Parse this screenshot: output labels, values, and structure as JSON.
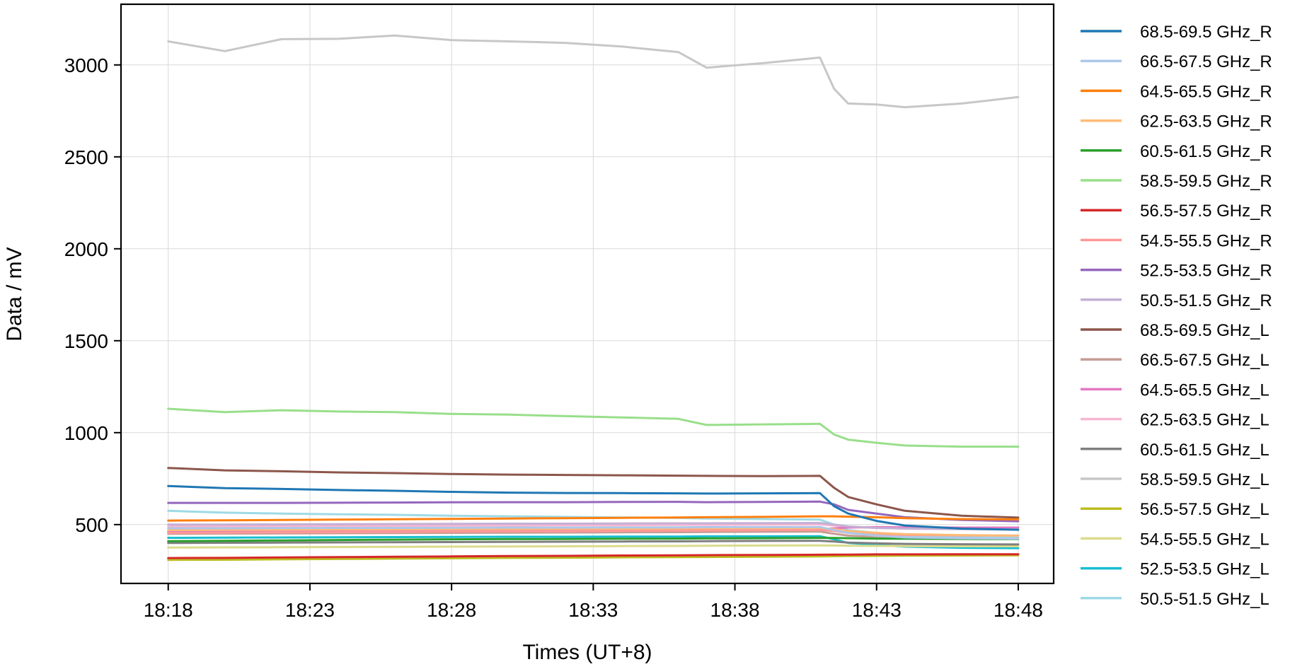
{
  "chart_data": {
    "type": "line",
    "title": "",
    "xlabel": "Times (UT+8)",
    "ylabel": "Data / mV",
    "x_ticks": [
      "18:18",
      "18:23",
      "18:28",
      "18:33",
      "18:38",
      "18:43",
      "18:48"
    ],
    "x_tick_values": [
      "18:18",
      "18:23",
      "18:28",
      "18:33",
      "18:38",
      "18:43",
      "18:48"
    ],
    "y_ticks": [
      500,
      1000,
      1500,
      2000,
      2500,
      3000
    ],
    "ylim": [
      180,
      3330
    ],
    "xlim": [
      "18:16:20",
      "18:49:15"
    ],
    "grid": true,
    "legend_position": "outside-right",
    "x": [
      "18:18",
      "18:20",
      "18:22",
      "18:24",
      "18:26",
      "18:28",
      "18:30",
      "18:32",
      "18:34",
      "18:36",
      "18:37",
      "18:39",
      "18:41",
      "18:41:30",
      "18:42",
      "18:43",
      "18:44",
      "18:46",
      "18:48"
    ],
    "series": [
      {
        "name": "68.5-69.5 GHz_R",
        "color": "#1f77b4",
        "values": [
          710,
          698,
          694,
          688,
          684,
          678,
          674,
          672,
          671,
          670,
          669,
          670,
          671,
          600,
          560,
          520,
          495,
          478,
          472
        ]
      },
      {
        "name": "66.5-67.5 GHz_R",
        "color": "#aec7e8",
        "values": [
          480,
          480,
          481,
          482,
          482,
          483,
          484,
          484,
          485,
          485,
          486,
          486,
          487,
          470,
          455,
          440,
          430,
          425,
          423
        ]
      },
      {
        "name": "64.5-65.5 GHz_R",
        "color": "#ff7f0e",
        "values": [
          522,
          523,
          525,
          527,
          529,
          531,
          533,
          535,
          537,
          539,
          540,
          542,
          545,
          545,
          543,
          540,
          535,
          530,
          528
        ]
      },
      {
        "name": "62.5-63.5 GHz_R",
        "color": "#ffbb78",
        "values": [
          470,
          471,
          472,
          473,
          474,
          475,
          476,
          477,
          478,
          479,
          480,
          481,
          482,
          475,
          465,
          455,
          448,
          443,
          440
        ]
      },
      {
        "name": "60.5-61.5 GHz_R",
        "color": "#2ca02c",
        "values": [
          410,
          412,
          414,
          416,
          418,
          420,
          421,
          422,
          423,
          424,
          425,
          426,
          428,
          427,
          426,
          424,
          423,
          422,
          421
        ]
      },
      {
        "name": "58.5-59.5 GHz_R",
        "color": "#98df8a",
        "values": [
          1130,
          1112,
          1122,
          1115,
          1112,
          1102,
          1098,
          1090,
          1083,
          1075,
          1042,
          1045,
          1048,
          990,
          962,
          945,
          930,
          924,
          924
        ]
      },
      {
        "name": "56.5-57.5 GHz_R",
        "color": "#d62728",
        "values": [
          318,
          319,
          321,
          323,
          325,
          327,
          329,
          330,
          332,
          333,
          334,
          335,
          336,
          337,
          337,
          338,
          338,
          339,
          339
        ]
      },
      {
        "name": "54.5-55.5 GHz_R",
        "color": "#ff9896",
        "values": [
          455,
          456,
          458,
          459,
          460,
          462,
          463,
          464,
          466,
          467,
          468,
          470,
          471,
          465,
          455,
          448,
          444,
          441,
          440
        ]
      },
      {
        "name": "52.5-53.5 GHz_R",
        "color": "#9467bd",
        "values": [
          618,
          618,
          618,
          619,
          620,
          621,
          622,
          622,
          623,
          624,
          622,
          623,
          625,
          610,
          580,
          560,
          540,
          525,
          518
        ]
      },
      {
        "name": "50.5-51.5 GHz_R",
        "color": "#c5b0d5",
        "values": [
          500,
          500,
          501,
          502,
          503,
          504,
          505,
          505,
          506,
          507,
          507,
          508,
          509,
          500,
          490,
          482,
          478,
          475,
          474
        ]
      },
      {
        "name": "68.5-69.5 GHz_L",
        "color": "#8c564b",
        "values": [
          808,
          795,
          790,
          784,
          780,
          775,
          772,
          770,
          768,
          766,
          765,
          764,
          765,
          700,
          650,
          610,
          575,
          548,
          538
        ]
      },
      {
        "name": "66.5-67.5 GHz_L",
        "color": "#c49c94",
        "values": [
          450,
          451,
          452,
          453,
          454,
          455,
          456,
          457,
          458,
          459,
          460,
          461,
          462,
          450,
          440,
          432,
          428,
          425,
          424
        ]
      },
      {
        "name": "64.5-65.5 GHz_L",
        "color": "#e377c2",
        "values": [
          462,
          463,
          464,
          465,
          466,
          467,
          468,
          469,
          470,
          471,
          472,
          473,
          475,
          480,
          484,
          486,
          485,
          484,
          484
        ]
      },
      {
        "name": "62.5-63.5 GHz_L",
        "color": "#f7b6d2",
        "values": [
          490,
          490,
          491,
          492,
          493,
          494,
          495,
          496,
          497,
          498,
          499,
          500,
          501,
          495,
          488,
          482,
          478,
          476,
          475
        ]
      },
      {
        "name": "60.5-61.5 GHz_L",
        "color": "#7f7f7f",
        "values": [
          400,
          401,
          402,
          403,
          404,
          405,
          406,
          407,
          408,
          409,
          410,
          411,
          412,
          408,
          402,
          398,
          395,
          393,
          392
        ]
      },
      {
        "name": "58.5-59.5 GHz_L",
        "color": "#c7c7c7",
        "values": [
          3128,
          3075,
          3140,
          3142,
          3160,
          3135,
          3128,
          3120,
          3100,
          3070,
          2985,
          3010,
          3040,
          2870,
          2790,
          2785,
          2770,
          2790,
          2825
        ]
      },
      {
        "name": "56.5-57.5 GHz_L",
        "color": "#bcbd22",
        "values": [
          308,
          309,
          311,
          313,
          315,
          317,
          319,
          320,
          322,
          323,
          324,
          325,
          327,
          328,
          329,
          330,
          331,
          332,
          333
        ]
      },
      {
        "name": "54.5-55.5 GHz_L",
        "color": "#dbdb8d",
        "values": [
          375,
          376,
          377,
          378,
          379,
          380,
          381,
          382,
          383,
          384,
          385,
          386,
          387,
          386,
          385,
          384,
          383,
          382,
          382
        ]
      },
      {
        "name": "52.5-53.5 GHz_L",
        "color": "#17becf",
        "values": [
          428,
          429,
          430,
          431,
          432,
          433,
          434,
          434,
          435,
          435,
          436,
          436,
          437,
          420,
          400,
          390,
          380,
          374,
          372
        ]
      },
      {
        "name": "50.5-51.5 GHz_L",
        "color": "#9edae5",
        "values": [
          575,
          565,
          560,
          556,
          553,
          548,
          545,
          542,
          539,
          536,
          533,
          530,
          527,
          500,
          470,
          455,
          440,
          432,
          430
        ]
      }
    ]
  }
}
